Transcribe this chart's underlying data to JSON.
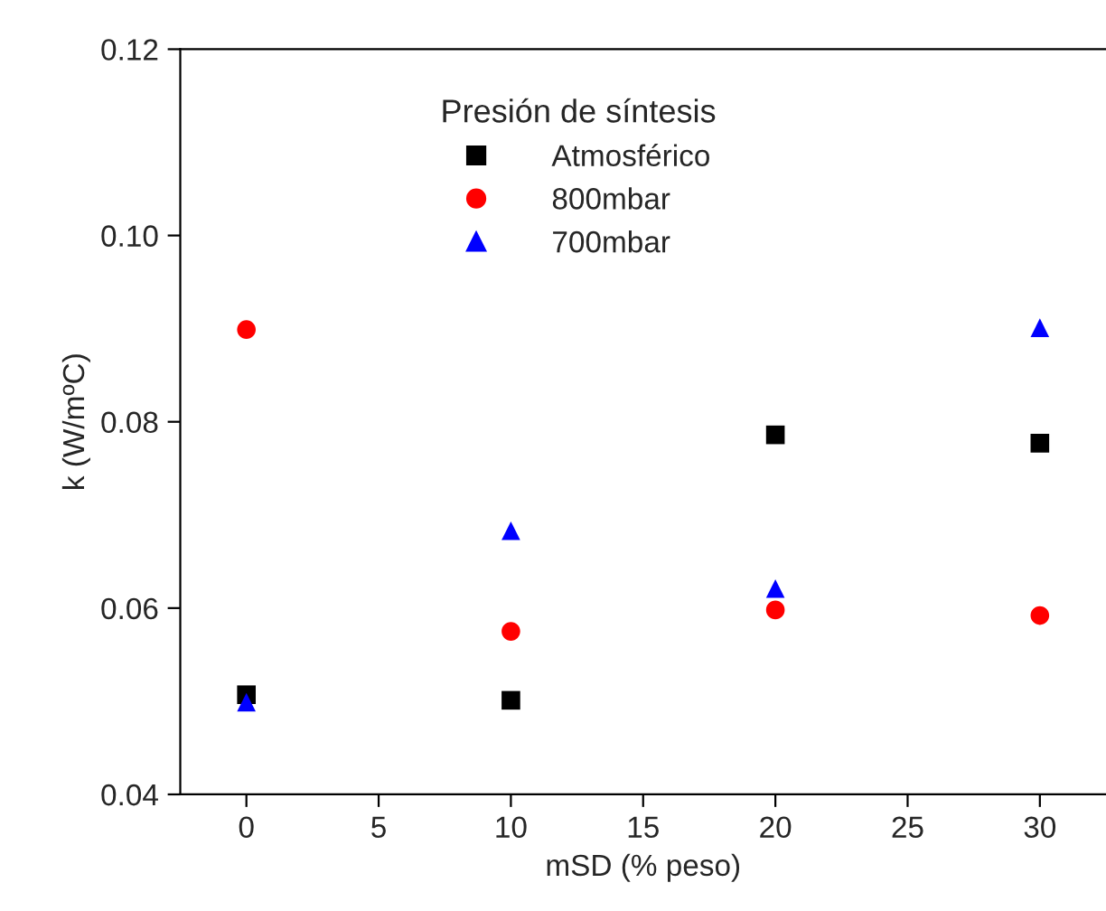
{
  "chart_data": {
    "type": "scatter",
    "xlabel": "mSD (% peso)",
    "ylabel": "k (W/mºC)",
    "legend_title": "Presión de síntesis",
    "legend": "top",
    "x": [
      0,
      10,
      20,
      30
    ],
    "series": [
      {
        "name": "Atmosférico",
        "color": "#000000",
        "marker": "square",
        "values": [
          0.0507,
          0.0501,
          0.0786,
          0.0777
        ]
      },
      {
        "name": "800mbar",
        "color": "#ff0000",
        "marker": "circle",
        "values": [
          0.0899,
          0.0575,
          0.0598,
          0.0592
        ]
      },
      {
        "name": "700mbar",
        "color": "#0000ff",
        "marker": "triangle",
        "values": [
          0.0499,
          0.0683,
          0.0621,
          0.0901
        ]
      }
    ],
    "xlim": [
      -2.5,
      32.5
    ],
    "xticks": [
      0,
      5,
      10,
      15,
      20,
      25,
      30
    ],
    "ylim": [
      0.04,
      0.12
    ],
    "yticks": [
      {
        "value": 0.04,
        "label": "0.04"
      },
      {
        "value": 0.06,
        "label": "0.06"
      },
      {
        "value": 0.08,
        "label": "0.08"
      },
      {
        "value": 0.1,
        "label": "0.10"
      },
      {
        "value": 0.12,
        "label": "0.12"
      }
    ],
    "grid": false
  }
}
